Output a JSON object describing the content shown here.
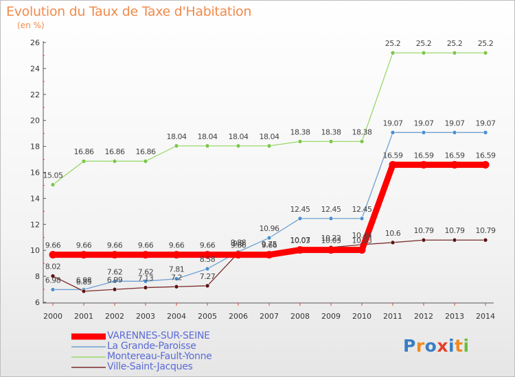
{
  "colors": {
    "title": "#f08a4a",
    "legend_text": "#5a6ad6",
    "axis": "#333333",
    "grid_mark": "#e2402a"
  },
  "logo": {
    "text": "Proxiti",
    "letter_colors": [
      "#3a7ec4",
      "#f08a1e",
      "#3a7ec4",
      "#e2402a",
      "#3a7ec4",
      "#f08a1e",
      "#6bbf3a"
    ]
  },
  "chart_data": {
    "type": "line",
    "title": "Evolution du Taux de Taxe d'Habitation",
    "subtitle": "(en %)",
    "categories": [
      "2000",
      "2001",
      "2002",
      "2003",
      "2004",
      "2005",
      "2006",
      "2007",
      "2008",
      "2009",
      "2010",
      "2011",
      "2012",
      "2013",
      "2014"
    ],
    "ylim": [
      6,
      26
    ],
    "yticks": [
      6,
      8,
      10,
      12,
      14,
      16,
      18,
      20,
      22,
      24,
      26
    ],
    "grid": false,
    "legend_position": "bottom-left",
    "series": [
      {
        "name": "VARENNES-SUR-SEINE",
        "color": "#ff0000",
        "marker": "#ff0000",
        "thick": true,
        "values": [
          9.66,
          9.66,
          9.66,
          9.66,
          9.66,
          9.66,
          9.66,
          9.66,
          10.03,
          10.03,
          10.03,
          16.59,
          16.59,
          16.59,
          16.59
        ],
        "labels": [
          "9.66",
          "9.66",
          "9.66",
          "9.66",
          "9.66",
          "9.66",
          "9.66",
          "9.66",
          "10.03",
          "10.03",
          "10.03",
          "16.59",
          "16.59",
          "16.59",
          "16.59"
        ]
      },
      {
        "name": "La Grande-Paroisse",
        "color": "#6f9fd0",
        "marker": "#4a8fd0",
        "thick": false,
        "values": [
          6.98,
          6.98,
          7.62,
          7.62,
          7.81,
          8.58,
          9.88,
          10.96,
          12.45,
          12.45,
          12.45,
          19.07,
          19.07,
          19.07,
          19.07
        ],
        "labels": [
          "6.98",
          "6.98",
          "7.62",
          "7.62",
          "7.81",
          "8.58",
          "9.88",
          "10.96",
          "12.45",
          "12.45",
          "12.45",
          "19.07",
          "19.07",
          "19.07",
          "19.07"
        ]
      },
      {
        "name": "Montereau-Fault-Yonne",
        "color": "#98d86a",
        "marker": "#7cc64a",
        "thick": false,
        "values": [
          15.05,
          16.86,
          16.86,
          16.86,
          18.04,
          18.04,
          18.04,
          18.04,
          18.38,
          18.38,
          18.38,
          25.2,
          25.2,
          25.2,
          25.2
        ],
        "labels": [
          "15.05",
          "16.86",
          "16.86",
          "16.86",
          "18.04",
          "18.04",
          "18.04",
          "18.04",
          "18.38",
          "18.38",
          "18.38",
          "25.2",
          "25.2",
          "25.2",
          "25.2"
        ]
      },
      {
        "name": "Ville-Saint-Jacques",
        "color": "#7a2a2a",
        "marker": "#5a1414",
        "thick": false,
        "values": [
          8.02,
          6.85,
          6.99,
          7.13,
          7.2,
          7.27,
          9.8,
          9.75,
          10.07,
          10.22,
          10.44,
          10.6,
          10.79,
          10.79,
          10.79
        ],
        "labels": [
          "8.02",
          "6.85",
          "6.99",
          "7.13",
          "7.2",
          "7.27",
          "9.8",
          "9.75",
          "10.07",
          "10.22",
          "10.44",
          "10.6",
          "10.79",
          "10.79",
          "10.79"
        ]
      }
    ]
  }
}
